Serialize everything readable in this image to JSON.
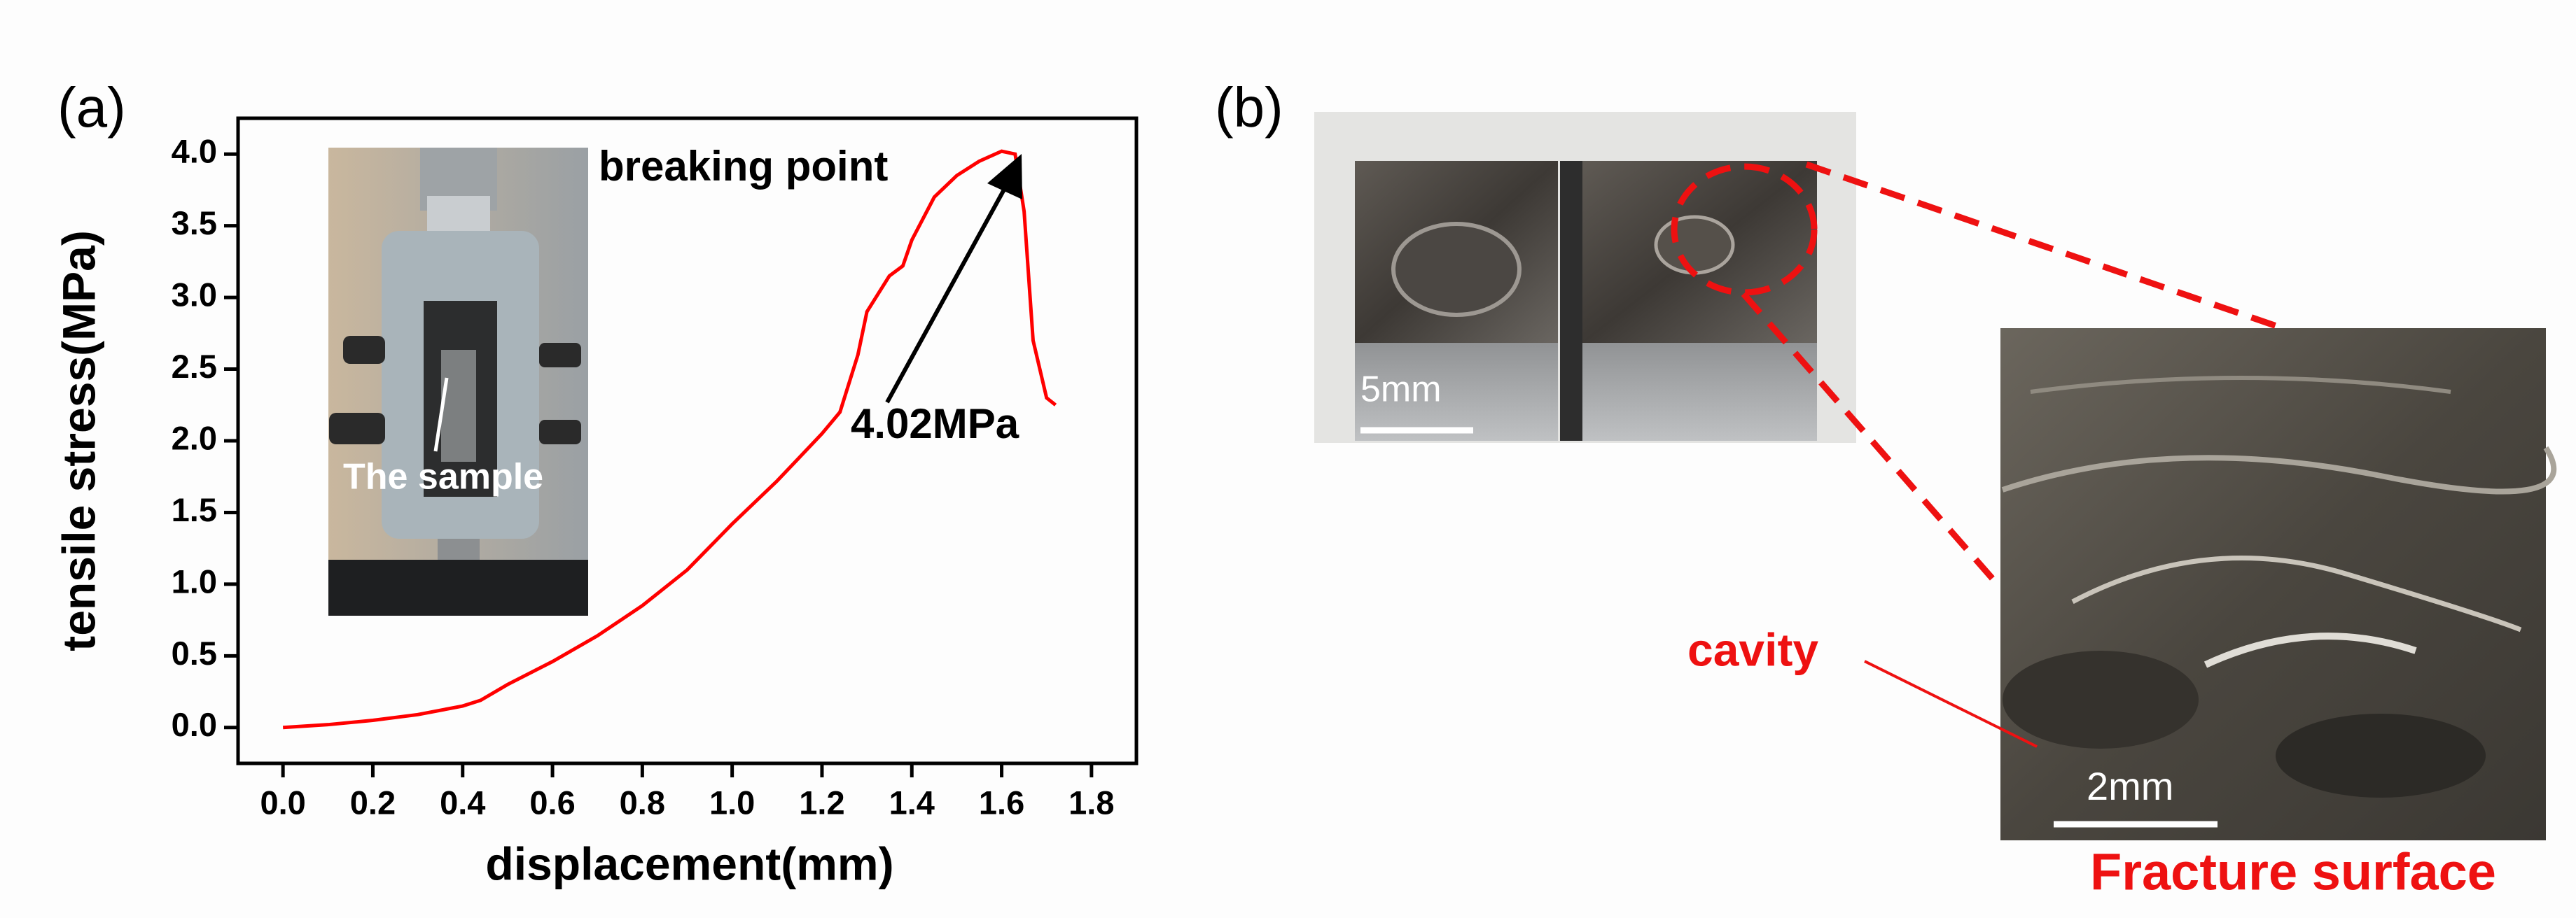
{
  "chart_data": {
    "type": "line",
    "xlabel": "displacement(mm)",
    "ylabel": "tensile stress(MPa)",
    "x": [
      0,
      0.1,
      0.2,
      0.3,
      0.4,
      0.44,
      0.5,
      0.6,
      0.7,
      0.8,
      0.9,
      1.0,
      1.1,
      1.2,
      1.24,
      1.28,
      1.3,
      1.35,
      1.38,
      1.4,
      1.45,
      1.5,
      1.55,
      1.6,
      1.63,
      1.65,
      1.67,
      1.7,
      1.72
    ],
    "values": [
      0,
      0.02,
      0.05,
      0.09,
      0.15,
      0.19,
      0.3,
      0.46,
      0.64,
      0.85,
      1.1,
      1.42,
      1.72,
      2.05,
      2.2,
      2.6,
      2.9,
      3.15,
      3.22,
      3.4,
      3.7,
      3.85,
      3.95,
      4.02,
      4.0,
      3.6,
      2.7,
      2.3,
      2.25
    ],
    "color": "#ff0000",
    "xlim": [
      -0.1,
      1.9
    ],
    "ylim": [
      -0.25,
      4.25
    ],
    "xticks": [
      {
        "value": 0,
        "label": "0.0"
      },
      0.2,
      0.4,
      0.6,
      0.8,
      {
        "value": 1,
        "label": "1.0"
      },
      1.2,
      1.4,
      1.6,
      1.8
    ],
    "yticks": [
      {
        "value": 0,
        "label": "0.0"
      },
      0.5,
      {
        "value": 1,
        "label": "1.0"
      },
      1.5,
      {
        "value": 2,
        "label": "2.0"
      },
      2.5,
      {
        "value": 3,
        "label": "3.0"
      },
      3.5,
      {
        "value": 4,
        "label": "4.0"
      }
    ],
    "annotations": [
      "breaking point",
      "4.02MPa"
    ]
  },
  "figure": {
    "panel_labels": [
      "(a)",
      "(b)"
    ],
    "inset_label": "The sample",
    "scale_bars": [
      "5mm",
      "2mm"
    ],
    "callout": "cavity",
    "caption": "Fracture surface"
  }
}
